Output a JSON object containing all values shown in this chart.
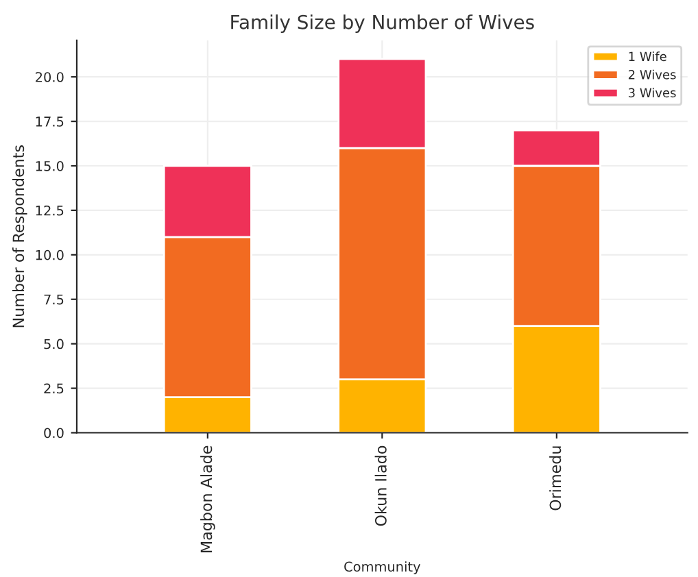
{
  "chart_data": {
    "type": "bar",
    "stacked": true,
    "title": "Family Size by Number of Wives",
    "xlabel": "Community",
    "ylabel": "Number of Respondents",
    "categories": [
      "Magbon Alade",
      "Okun Ilado",
      "Orimedu"
    ],
    "series": [
      {
        "name": "1 Wife",
        "color": "#ffb300",
        "values": [
          2,
          3,
          6
        ]
      },
      {
        "name": "2 Wives",
        "color": "#f26b21",
        "values": [
          9,
          13,
          9
        ]
      },
      {
        "name": "3 Wives",
        "color": "#ef3158",
        "values": [
          4,
          5,
          2
        ]
      }
    ],
    "ylim": [
      0,
      22.05
    ],
    "yticks": [
      {
        "value": 0,
        "label": "0.0"
      },
      {
        "value": 2.5,
        "label": "2.5"
      },
      {
        "value": 5,
        "label": "5.0"
      },
      {
        "value": 7.5,
        "label": "7.5"
      },
      {
        "value": 10,
        "label": "10.0"
      },
      {
        "value": 12.5,
        "label": "12.5"
      },
      {
        "value": 15,
        "label": "15.0"
      },
      {
        "value": 17.5,
        "label": "17.5"
      },
      {
        "value": 20,
        "label": "20.0"
      }
    ],
    "grid": true,
    "legend": "top right"
  }
}
